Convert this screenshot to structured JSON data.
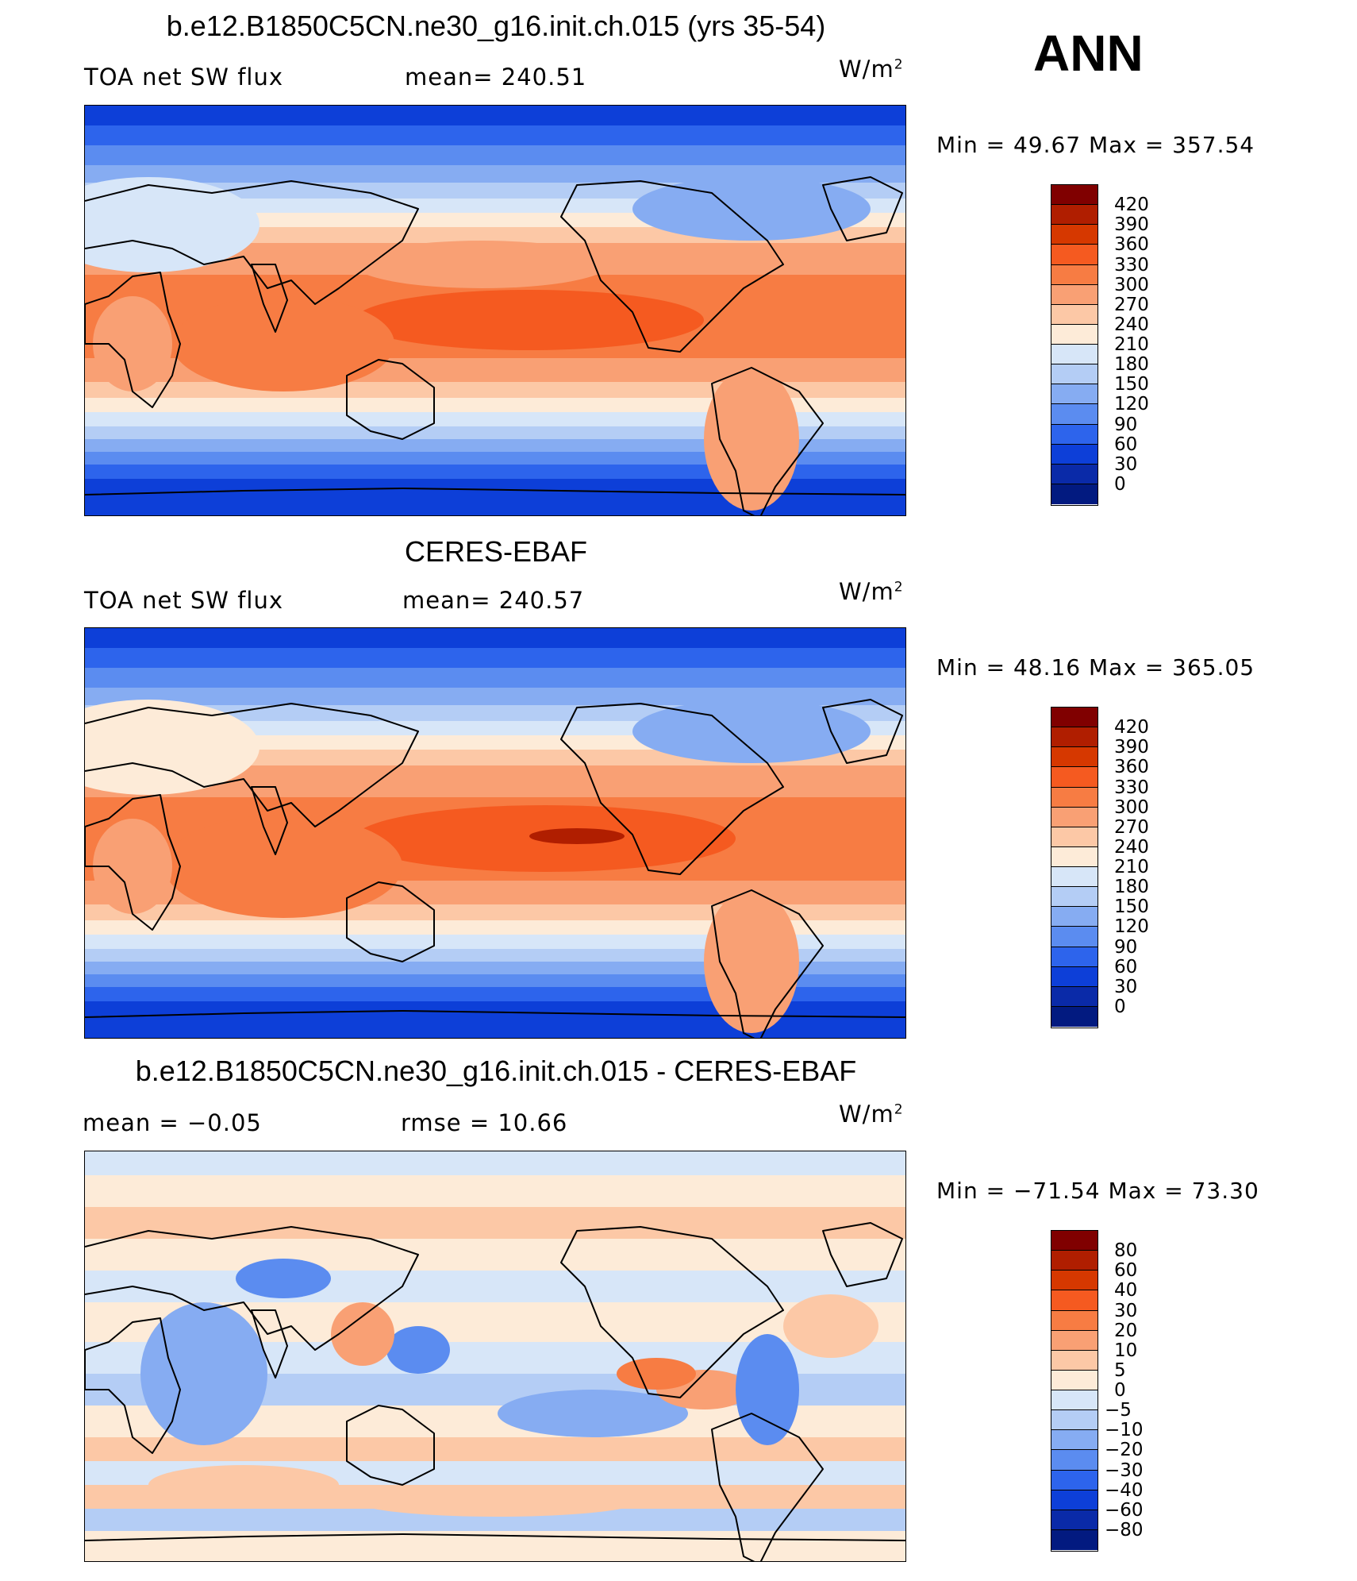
{
  "season": "ANN",
  "panels": [
    {
      "title": "b.e12.B1850C5CN.ne30_g16.init.ch.015 (yrs 35-54)",
      "left_label": "TOA net SW flux",
      "mid_label": "mean= 240.51",
      "units": "W/m",
      "units_sup": "2",
      "minmax": "Min =   49.67  Max  =  357.54",
      "colorbar_levels": [
        "420",
        "390",
        "360",
        "330",
        "300",
        "270",
        "240",
        "210",
        "180",
        "150",
        "120",
        "90",
        "60",
        "30",
        "0"
      ],
      "colors": [
        "#800000",
        "#b01e00",
        "#d63800",
        "#f55a20",
        "#f77c43",
        "#f9a074",
        "#fcc8a6",
        "#fdebd8",
        "#d7e6f8",
        "#b4cdf5",
        "#86acf2",
        "#5b8cf0",
        "#2d64ec",
        "#0d3fd8",
        "#0a2aa8",
        "#021a80"
      ]
    },
    {
      "title": "CERES-EBAF",
      "left_label": "TOA net SW flux",
      "mid_label": "mean= 240.57",
      "units": "W/m",
      "units_sup": "2",
      "minmax": "Min =   48.16  Max  =  365.05",
      "colorbar_levels": [
        "420",
        "390",
        "360",
        "330",
        "300",
        "270",
        "240",
        "210",
        "180",
        "150",
        "120",
        "90",
        "60",
        "30",
        "0"
      ],
      "colors": [
        "#800000",
        "#b01e00",
        "#d63800",
        "#f55a20",
        "#f77c43",
        "#f9a074",
        "#fcc8a6",
        "#fdebd8",
        "#d7e6f8",
        "#b4cdf5",
        "#86acf2",
        "#5b8cf0",
        "#2d64ec",
        "#0d3fd8",
        "#0a2aa8",
        "#021a80"
      ]
    },
    {
      "title": "b.e12.B1850C5CN.ne30_g16.init.ch.015 - CERES-EBAF",
      "left_label": "mean =   −0.05",
      "mid_label": "rmse =   10.66",
      "units": "W/m",
      "units_sup": "2",
      "minmax": "Min = −71.54  Max =   73.30",
      "colorbar_levels": [
        "80",
        "60",
        "40",
        "30",
        "20",
        "10",
        "5",
        "0",
        "−5",
        "−10",
        "−20",
        "−30",
        "−40",
        "−60",
        "−80"
      ],
      "colors": [
        "#800000",
        "#b01e00",
        "#d63800",
        "#f55a20",
        "#f77c43",
        "#f9a074",
        "#fcc8a6",
        "#fdebd8",
        "#d7e6f8",
        "#b4cdf5",
        "#86acf2",
        "#5b8cf0",
        "#2d64ec",
        "#0d3fd8",
        "#0a2aa8",
        "#021a80"
      ]
    }
  ]
}
